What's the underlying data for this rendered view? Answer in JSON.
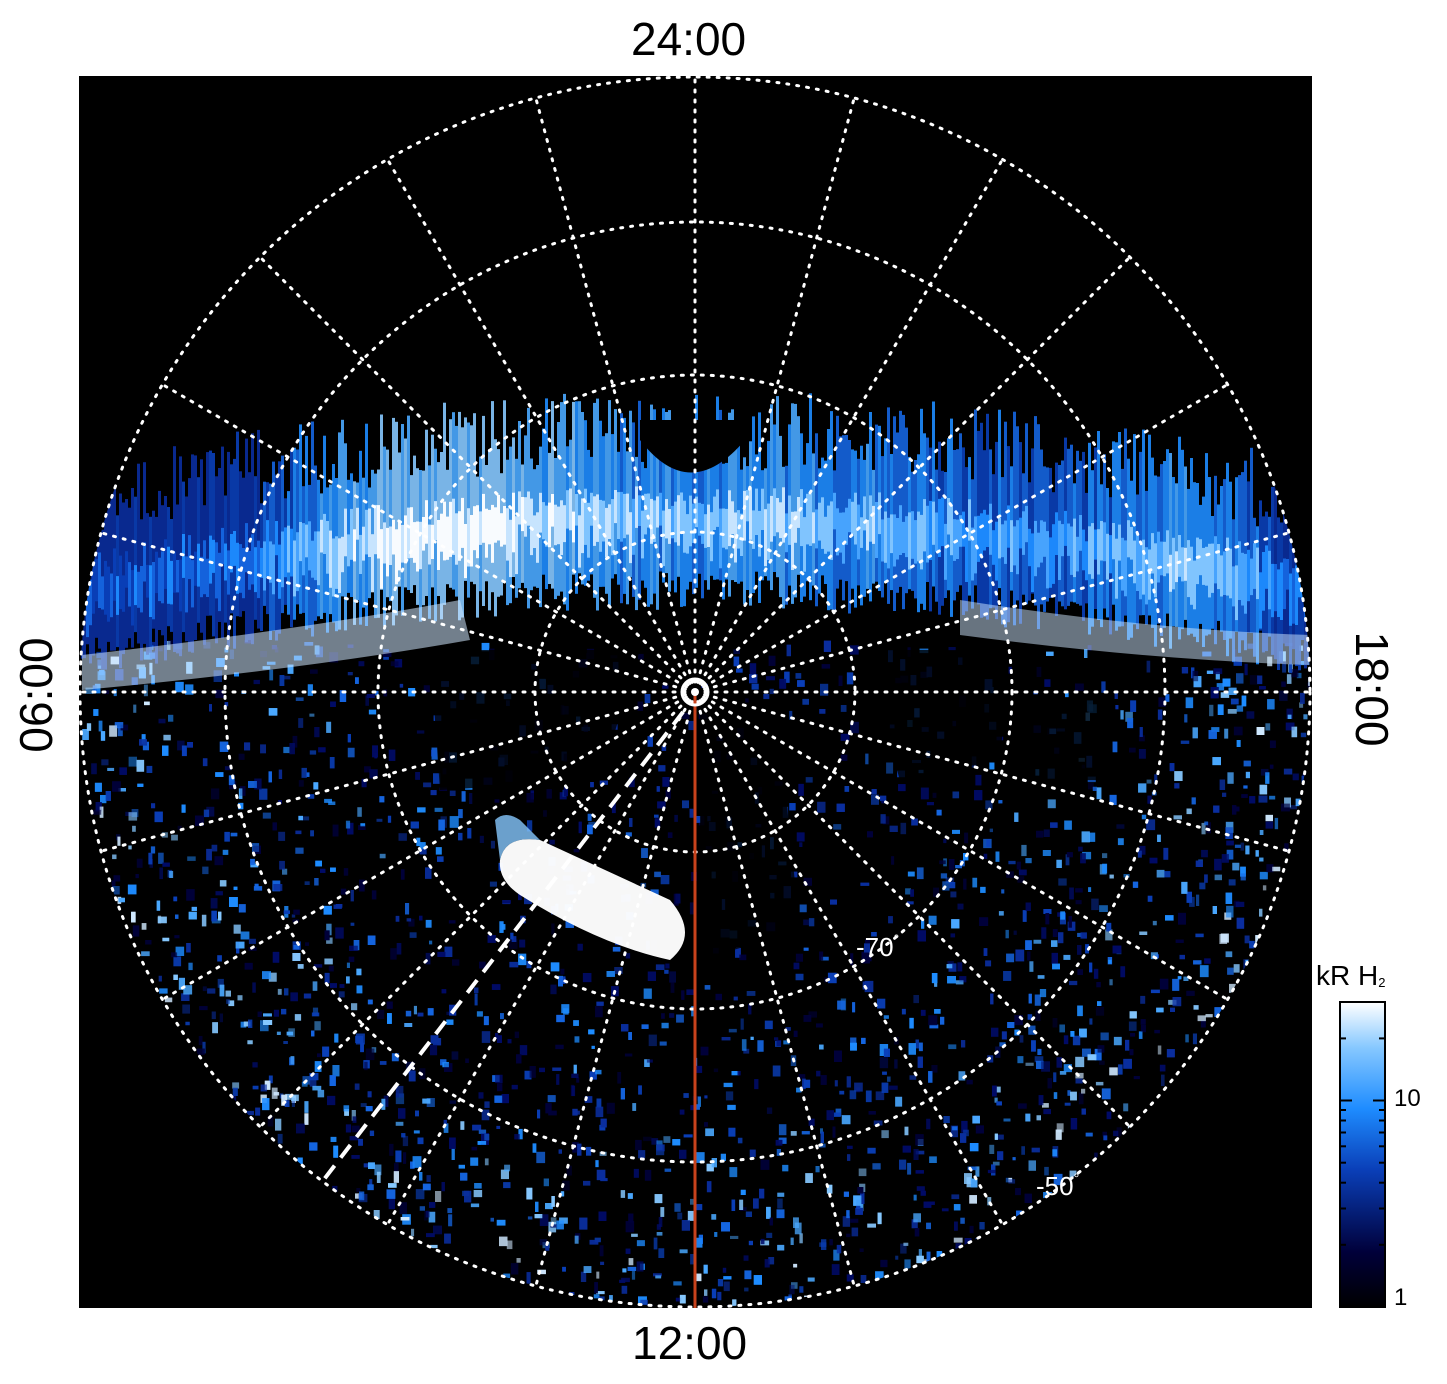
{
  "lt_labels": {
    "top": "24:00",
    "bottom": "12:00",
    "left": "06:00",
    "right": "18:00"
  },
  "lat_labels": {
    "inner": "-70",
    "outer": "-50",
    "degree_symbol": "°"
  },
  "colorbar": {
    "title_main": "kR H",
    "title_sub": "2",
    "tick_high": "10",
    "tick_low": "1",
    "scale": "log",
    "colors": [
      "#000000",
      "#00004a",
      "#0a3fb8",
      "#1e8cff",
      "#86c8ff",
      "#ffffff"
    ]
  },
  "colors": {
    "background": "#000000",
    "grid": "#ffffff",
    "meridian_line": "#c8421c",
    "dashed_line": "#ffffff"
  }
}
